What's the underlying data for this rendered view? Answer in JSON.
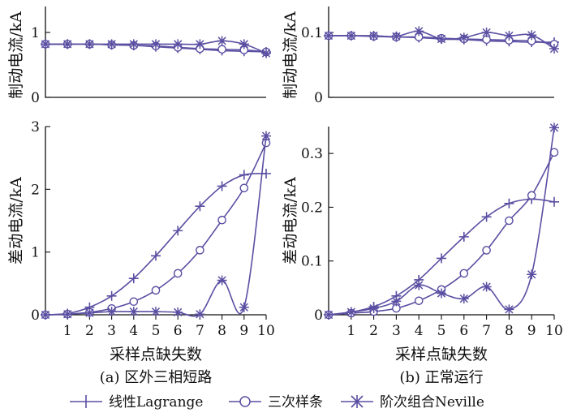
{
  "colors": {
    "series": "#5a4fa2",
    "axis": "#111111"
  },
  "legend": {
    "items": [
      {
        "label": "线性Lagrange",
        "marker": "plus"
      },
      {
        "label": "三次样条",
        "marker": "circle"
      },
      {
        "label": "阶次组合Neville",
        "marker": "star"
      }
    ]
  },
  "chart_data": [
    {
      "panel": "a",
      "position": "top-left",
      "type": "line",
      "ylabel": "制动电流/kA",
      "xlabel": "",
      "caption": "",
      "xlim": [
        0,
        10
      ],
      "ylim": [
        0,
        1.4
      ],
      "xticks": [],
      "yticks": [
        0,
        1
      ],
      "x": [
        0,
        1,
        2,
        3,
        4,
        5,
        6,
        7,
        8,
        9,
        10
      ],
      "series": [
        {
          "name": "线性Lagrange",
          "marker": "plus",
          "values": [
            0.82,
            0.82,
            0.82,
            0.81,
            0.8,
            0.78,
            0.76,
            0.74,
            0.72,
            0.71,
            0.7
          ]
        },
        {
          "name": "三次样条",
          "marker": "circle",
          "values": [
            0.82,
            0.82,
            0.82,
            0.81,
            0.8,
            0.79,
            0.77,
            0.75,
            0.74,
            0.73,
            0.7
          ]
        },
        {
          "name": "阶次组合Neville",
          "marker": "star",
          "values": [
            0.82,
            0.82,
            0.82,
            0.82,
            0.82,
            0.82,
            0.82,
            0.82,
            0.87,
            0.82,
            0.68
          ]
        }
      ]
    },
    {
      "panel": "a",
      "position": "bottom-left",
      "type": "line",
      "ylabel": "差动电流/kA",
      "xlabel": "采样点缺失数",
      "caption": "(a) 区外三相短路",
      "xlim": [
        0,
        10
      ],
      "ylim": [
        0,
        3
      ],
      "xticks": [
        1,
        2,
        3,
        4,
        5,
        6,
        7,
        8,
        9,
        10
      ],
      "yticks": [
        0,
        1,
        2,
        3
      ],
      "x": [
        0,
        1,
        2,
        3,
        4,
        5,
        6,
        7,
        8,
        9,
        10
      ],
      "series": [
        {
          "name": "线性Lagrange",
          "marker": "plus",
          "values": [
            0.0,
            0.02,
            0.12,
            0.3,
            0.58,
            0.94,
            1.34,
            1.73,
            2.05,
            2.23,
            2.25
          ]
        },
        {
          "name": "三次样条",
          "marker": "circle",
          "values": [
            0.0,
            0.01,
            0.04,
            0.1,
            0.21,
            0.39,
            0.66,
            1.03,
            1.51,
            2.02,
            2.74
          ]
        },
        {
          "name": "阶次组合Neville",
          "marker": "star",
          "values": [
            0.0,
            0.01,
            0.03,
            0.05,
            0.05,
            0.05,
            0.04,
            0.01,
            0.55,
            0.12,
            2.85
          ]
        }
      ]
    },
    {
      "panel": "b",
      "position": "top-right",
      "type": "line",
      "ylabel": "制动电流/kA",
      "xlabel": "",
      "caption": "",
      "xlim": [
        0,
        10
      ],
      "ylim": [
        0,
        0.14
      ],
      "xticks": [],
      "yticks": [
        0,
        0.1
      ],
      "x": [
        0,
        1,
        2,
        3,
        4,
        5,
        6,
        7,
        8,
        9,
        10
      ],
      "series": [
        {
          "name": "线性Lagrange",
          "marker": "plus",
          "values": [
            0.095,
            0.095,
            0.094,
            0.093,
            0.092,
            0.09,
            0.089,
            0.087,
            0.086,
            0.085,
            0.085
          ]
        },
        {
          "name": "三次样条",
          "marker": "circle",
          "values": [
            0.095,
            0.095,
            0.094,
            0.093,
            0.093,
            0.091,
            0.09,
            0.089,
            0.088,
            0.087,
            0.082
          ]
        },
        {
          "name": "阶次组合Neville",
          "marker": "star",
          "values": [
            0.095,
            0.095,
            0.095,
            0.094,
            0.102,
            0.09,
            0.092,
            0.1,
            0.095,
            0.096,
            0.075
          ]
        }
      ]
    },
    {
      "panel": "b",
      "position": "bottom-right",
      "type": "line",
      "ylabel": "差动电流/kA",
      "xlabel": "采样点缺失数",
      "caption": "(b) 正常运行",
      "xlim": [
        0,
        10
      ],
      "ylim": [
        0,
        0.35
      ],
      "xticks": [
        1,
        2,
        3,
        4,
        5,
        6,
        7,
        8,
        9,
        10
      ],
      "yticks": [
        0,
        0.1,
        0.2,
        0.3
      ],
      "x": [
        0,
        1,
        2,
        3,
        4,
        5,
        6,
        7,
        8,
        9,
        10
      ],
      "series": [
        {
          "name": "线性Lagrange",
          "marker": "plus",
          "values": [
            0.0,
            0.005,
            0.015,
            0.035,
            0.065,
            0.105,
            0.145,
            0.182,
            0.207,
            0.215,
            0.21
          ]
        },
        {
          "name": "三次样条",
          "marker": "circle",
          "values": [
            0.0,
            0.003,
            0.006,
            0.012,
            0.026,
            0.047,
            0.077,
            0.12,
            0.175,
            0.222,
            0.302
          ]
        },
        {
          "name": "阶次组合Neville",
          "marker": "star",
          "values": [
            0.0,
            0.005,
            0.012,
            0.025,
            0.055,
            0.04,
            0.03,
            0.052,
            0.01,
            0.075,
            0.348
          ]
        }
      ]
    }
  ]
}
